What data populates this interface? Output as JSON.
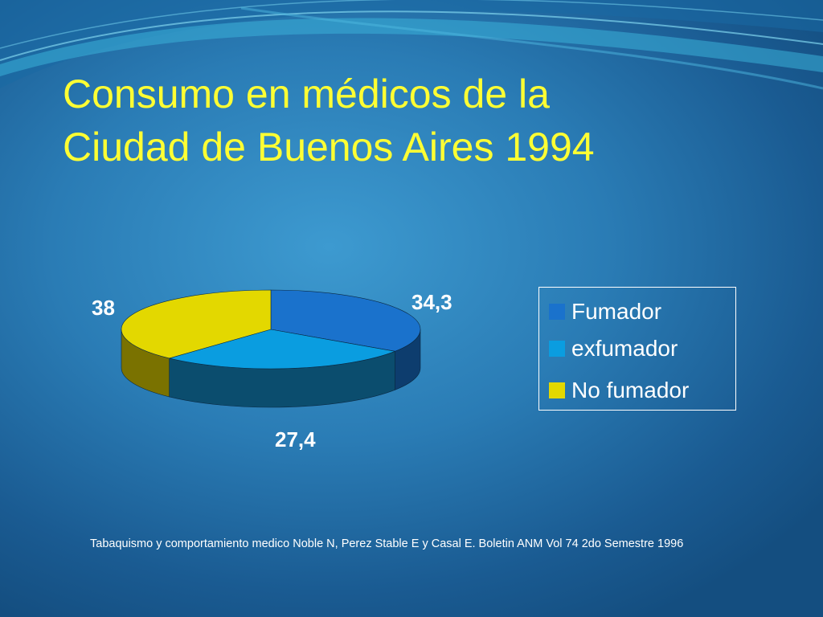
{
  "slide": {
    "title_line1": "Consumo en médicos de la",
    "title_line2": "Ciudad de Buenos Aires 1994",
    "source": "Tabaquismo y comportamiento medico Noble N, Perez Stable E y Casal E. Boletin ANM Vol 74 2do Semestre 1996",
    "title_color": "#ffff33"
  },
  "chart_data": {
    "type": "pie",
    "style": "3d",
    "title": "",
    "categories": [
      "Fumador",
      "exfumador",
      "No fumador"
    ],
    "values": [
      34.3,
      27.4,
      38
    ],
    "value_labels": [
      "34,3",
      "27,4",
      "38"
    ],
    "colors": [
      "#1a72cc",
      "#0a9de0",
      "#e3d800"
    ],
    "side_colors": [
      "#0d3d6e",
      "#0b4d6e",
      "#7a7200"
    ],
    "legend": {
      "placement": "right",
      "items": [
        {
          "label": "Fumador",
          "color": "#1a72cc"
        },
        {
          "label": "exfumador",
          "color": "#0a9de0"
        },
        {
          "label": "No fumador",
          "color": "#e3d800"
        }
      ]
    }
  }
}
